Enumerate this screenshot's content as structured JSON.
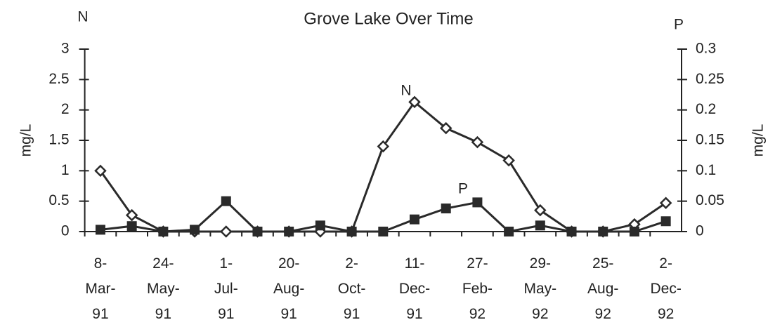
{
  "chart_data": {
    "type": "line",
    "title": "Grove Lake Over Time",
    "y_corner_label": "N",
    "y2_corner_label": "P",
    "ylabel": "mg/L",
    "y2label": "mg/L",
    "annotations": [
      "N",
      "P"
    ],
    "categories": [
      "8-Mar-91",
      null,
      "24-May-91",
      null,
      "1-Jul-91",
      null,
      "20-Aug-91",
      null,
      "2-Oct-91",
      null,
      "11-Dec-91",
      null,
      "27-Feb-92",
      null,
      "29-May-92",
      null,
      "25-Aug-92",
      null,
      "2-Dec-92"
    ],
    "ylim": [
      0,
      3
    ],
    "yticks": [
      0,
      0.5,
      1,
      1.5,
      2,
      2.5,
      3
    ],
    "y2lim": [
      0,
      0.3
    ],
    "y2ticks": [
      0,
      0.05,
      0.1,
      0.15,
      0.2,
      0.25,
      0.3
    ],
    "series": [
      {
        "name": "N",
        "color": "#2a2a2a",
        "marker": "diamond",
        "values": [
          1.0,
          0.27,
          0,
          0,
          0,
          0,
          0,
          0,
          0,
          1.4,
          2.13,
          1.7,
          1.47,
          1.17,
          0.35,
          0,
          0,
          0.12,
          0.47
        ]
      },
      {
        "name": "P",
        "color": "#2a2a2a",
        "marker": "square",
        "axis": "y2",
        "values": [
          0.003,
          0.009,
          0,
          0.003,
          0.05,
          0,
          0,
          0.01,
          0,
          0,
          0.02,
          0.038,
          0.048,
          0,
          0.01,
          0,
          0,
          0,
          0.017
        ]
      }
    ]
  }
}
